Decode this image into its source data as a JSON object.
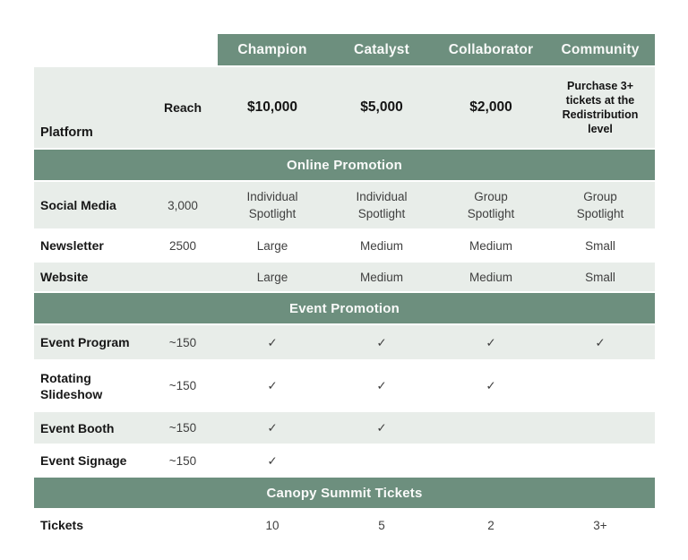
{
  "theme": {
    "header_green": "#6D8F7E",
    "row_light": "#E8EDE9",
    "row_white": "#FFFFFF",
    "header_text_color": "#F9FAF9",
    "label_text_color": "#171717",
    "value_text_color": "#3F3F3F"
  },
  "table": {
    "corner": {
      "platform_label": "Platform",
      "reach_label": "Reach"
    },
    "tiers": [
      {
        "name": "Champion",
        "price": "$10,000"
      },
      {
        "name": "Catalyst",
        "price": "$5,000"
      },
      {
        "name": "Collaborator",
        "price": "$2,000"
      },
      {
        "name": "Community",
        "price": "Purchase 3+ tickets at the Redistribution level"
      }
    ],
    "sections": [
      {
        "title": "Online Promotion",
        "rows": [
          {
            "label": "Social Media",
            "reach": "3,000",
            "values": [
              "Individual Spotlight",
              "Individual Spotlight",
              "Group Spotlight",
              "Group Spotlight"
            ]
          },
          {
            "label": "Newsletter",
            "reach": "2500",
            "values": [
              "Large",
              "Medium",
              "Medium",
              "Small"
            ]
          },
          {
            "label": "Website",
            "reach": "",
            "values": [
              "Large",
              "Medium",
              "Medium",
              "Small"
            ]
          }
        ]
      },
      {
        "title": "Event Promotion",
        "rows": [
          {
            "label": "Event Program",
            "reach": "~150",
            "values": [
              "✓",
              "✓",
              "✓",
              "✓"
            ]
          },
          {
            "label": "Rotating Slideshow",
            "reach": "~150",
            "values": [
              "✓",
              "✓",
              "✓",
              ""
            ]
          },
          {
            "label": "Event Booth",
            "reach": "~150",
            "values": [
              "✓",
              "✓",
              "",
              ""
            ]
          },
          {
            "label": "Event Signage",
            "reach": "~150",
            "values": [
              "✓",
              "",
              "",
              ""
            ]
          }
        ]
      },
      {
        "title": "Canopy Summit Tickets",
        "rows": [
          {
            "label": "Tickets",
            "reach": "",
            "values": [
              "10",
              "5",
              "2",
              "3+"
            ]
          }
        ]
      }
    ]
  }
}
